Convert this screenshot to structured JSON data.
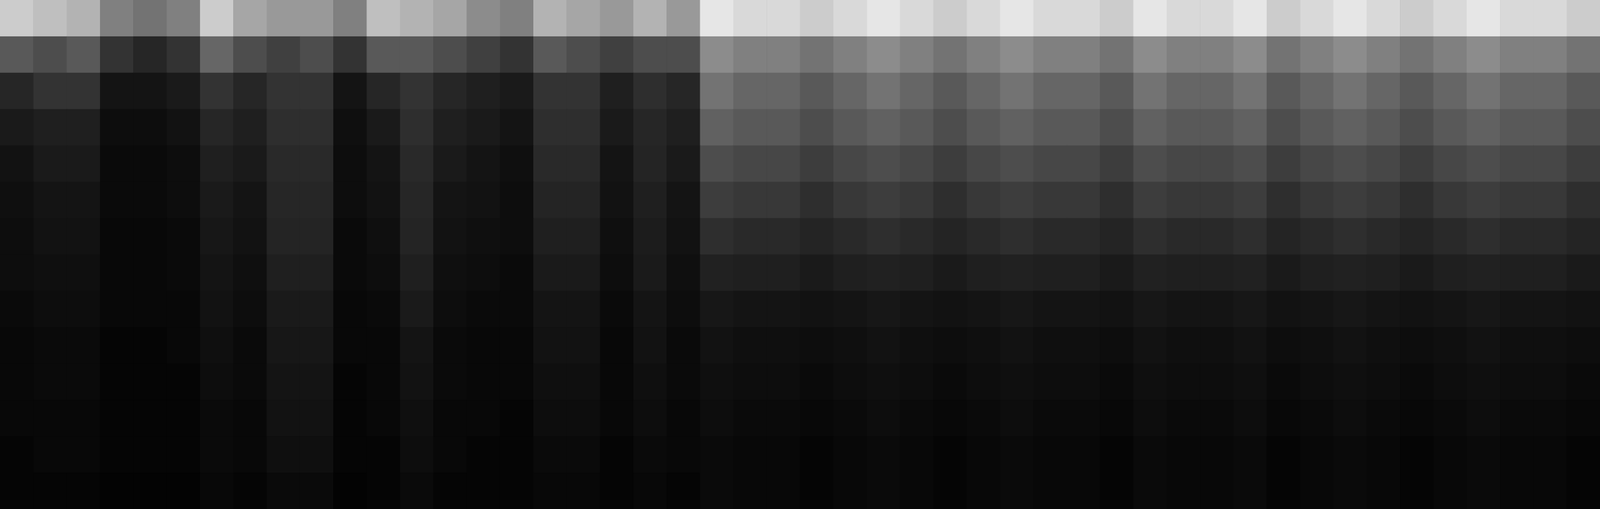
{
  "chart_data": {
    "type": "heatmap",
    "tick_labels": false,
    "color": "#ffffff",
    "zlim": [
      0,
      1
    ],
    "cells": [
      [
        0.8,
        0.75,
        0.7,
        0.5,
        0.45,
        0.5,
        0.8,
        0.65,
        0.6,
        0.6,
        0.5,
        0.75,
        0.7,
        0.65,
        0.55,
        0.5,
        0.7,
        0.65,
        0.6,
        0.7,
        0.6,
        0.9,
        0.85,
        0.85,
        0.8,
        0.85,
        0.9,
        0.85,
        0.8,
        0.85,
        0.9,
        0.85,
        0.85,
        0.8,
        0.9,
        0.85,
        0.85,
        0.9,
        0.8,
        0.85,
        0.9,
        0.85,
        0.8,
        0.85,
        0.9,
        0.85,
        0.85,
        0.8
      ],
      [
        0.35,
        0.3,
        0.35,
        0.2,
        0.15,
        0.2,
        0.4,
        0.3,
        0.25,
        0.3,
        0.2,
        0.35,
        0.35,
        0.3,
        0.25,
        0.2,
        0.35,
        0.3,
        0.25,
        0.3,
        0.3,
        0.55,
        0.5,
        0.5,
        0.45,
        0.5,
        0.55,
        0.5,
        0.45,
        0.5,
        0.55,
        0.5,
        0.5,
        0.45,
        0.55,
        0.5,
        0.5,
        0.55,
        0.45,
        0.5,
        0.55,
        0.5,
        0.45,
        0.5,
        0.55,
        0.5,
        0.5,
        0.45
      ],
      [
        0.15,
        0.2,
        0.2,
        0.08,
        0.08,
        0.1,
        0.2,
        0.15,
        0.2,
        0.2,
        0.08,
        0.15,
        0.2,
        0.15,
        0.12,
        0.1,
        0.2,
        0.2,
        0.12,
        0.18,
        0.15,
        0.45,
        0.4,
        0.4,
        0.35,
        0.4,
        0.45,
        0.4,
        0.35,
        0.4,
        0.45,
        0.4,
        0.4,
        0.35,
        0.45,
        0.4,
        0.4,
        0.45,
        0.35,
        0.4,
        0.45,
        0.4,
        0.35,
        0.4,
        0.45,
        0.4,
        0.4,
        0.35
      ],
      [
        0.1,
        0.12,
        0.12,
        0.05,
        0.05,
        0.07,
        0.15,
        0.12,
        0.18,
        0.18,
        0.06,
        0.1,
        0.18,
        0.12,
        0.1,
        0.08,
        0.18,
        0.18,
        0.1,
        0.15,
        0.12,
        0.38,
        0.35,
        0.35,
        0.3,
        0.35,
        0.38,
        0.35,
        0.3,
        0.35,
        0.38,
        0.35,
        0.35,
        0.3,
        0.38,
        0.35,
        0.35,
        0.38,
        0.3,
        0.35,
        0.38,
        0.35,
        0.3,
        0.35,
        0.38,
        0.35,
        0.35,
        0.3
      ],
      [
        0.07,
        0.1,
        0.1,
        0.04,
        0.04,
        0.05,
        0.12,
        0.1,
        0.16,
        0.16,
        0.05,
        0.08,
        0.16,
        0.1,
        0.08,
        0.06,
        0.16,
        0.16,
        0.08,
        0.14,
        0.1,
        0.3,
        0.28,
        0.28,
        0.24,
        0.28,
        0.3,
        0.28,
        0.24,
        0.28,
        0.3,
        0.28,
        0.28,
        0.24,
        0.3,
        0.28,
        0.28,
        0.3,
        0.24,
        0.28,
        0.3,
        0.28,
        0.24,
        0.28,
        0.3,
        0.28,
        0.28,
        0.24
      ],
      [
        0.06,
        0.08,
        0.08,
        0.04,
        0.04,
        0.05,
        0.1,
        0.08,
        0.15,
        0.15,
        0.05,
        0.07,
        0.15,
        0.08,
        0.07,
        0.05,
        0.14,
        0.14,
        0.07,
        0.12,
        0.08,
        0.24,
        0.22,
        0.22,
        0.18,
        0.22,
        0.24,
        0.22,
        0.18,
        0.22,
        0.24,
        0.22,
        0.22,
        0.18,
        0.24,
        0.22,
        0.22,
        0.24,
        0.18,
        0.22,
        0.24,
        0.22,
        0.18,
        0.22,
        0.24,
        0.22,
        0.22,
        0.18
      ],
      [
        0.05,
        0.07,
        0.07,
        0.03,
        0.03,
        0.04,
        0.09,
        0.07,
        0.14,
        0.14,
        0.04,
        0.06,
        0.14,
        0.07,
        0.06,
        0.05,
        0.12,
        0.12,
        0.06,
        0.11,
        0.07,
        0.18,
        0.16,
        0.16,
        0.14,
        0.16,
        0.18,
        0.16,
        0.14,
        0.16,
        0.18,
        0.16,
        0.16,
        0.14,
        0.18,
        0.16,
        0.16,
        0.18,
        0.14,
        0.16,
        0.18,
        0.16,
        0.14,
        0.16,
        0.18,
        0.16,
        0.16,
        0.14
      ],
      [
        0.05,
        0.06,
        0.06,
        0.03,
        0.03,
        0.04,
        0.08,
        0.06,
        0.12,
        0.12,
        0.04,
        0.05,
        0.12,
        0.06,
        0.05,
        0.04,
        0.1,
        0.1,
        0.05,
        0.1,
        0.06,
        0.13,
        0.12,
        0.12,
        0.1,
        0.12,
        0.13,
        0.12,
        0.1,
        0.12,
        0.13,
        0.12,
        0.12,
        0.1,
        0.13,
        0.12,
        0.12,
        0.13,
        0.1,
        0.12,
        0.13,
        0.12,
        0.1,
        0.12,
        0.13,
        0.12,
        0.12,
        0.1
      ],
      [
        0.04,
        0.05,
        0.05,
        0.03,
        0.03,
        0.03,
        0.07,
        0.05,
        0.1,
        0.1,
        0.03,
        0.04,
        0.1,
        0.05,
        0.04,
        0.04,
        0.08,
        0.08,
        0.04,
        0.08,
        0.05,
        0.09,
        0.08,
        0.08,
        0.07,
        0.08,
        0.09,
        0.08,
        0.07,
        0.08,
        0.09,
        0.08,
        0.08,
        0.07,
        0.09,
        0.08,
        0.08,
        0.09,
        0.07,
        0.08,
        0.09,
        0.08,
        0.07,
        0.08,
        0.09,
        0.08,
        0.08,
        0.07
      ],
      [
        0.03,
        0.04,
        0.04,
        0.02,
        0.02,
        0.03,
        0.06,
        0.04,
        0.09,
        0.09,
        0.03,
        0.03,
        0.08,
        0.04,
        0.03,
        0.03,
        0.07,
        0.07,
        0.03,
        0.07,
        0.04,
        0.07,
        0.06,
        0.06,
        0.05,
        0.06,
        0.07,
        0.06,
        0.05,
        0.06,
        0.07,
        0.06,
        0.06,
        0.05,
        0.07,
        0.06,
        0.06,
        0.07,
        0.05,
        0.06,
        0.07,
        0.06,
        0.05,
        0.06,
        0.07,
        0.06,
        0.06,
        0.05
      ],
      [
        0.03,
        0.04,
        0.04,
        0.02,
        0.02,
        0.02,
        0.05,
        0.04,
        0.08,
        0.08,
        0.02,
        0.03,
        0.07,
        0.04,
        0.03,
        0.03,
        0.06,
        0.06,
        0.03,
        0.06,
        0.04,
        0.06,
        0.05,
        0.05,
        0.04,
        0.05,
        0.06,
        0.05,
        0.04,
        0.05,
        0.06,
        0.05,
        0.05,
        0.04,
        0.06,
        0.05,
        0.05,
        0.06,
        0.04,
        0.05,
        0.06,
        0.05,
        0.04,
        0.05,
        0.06,
        0.05,
        0.05,
        0.04
      ],
      [
        0.03,
        0.03,
        0.03,
        0.02,
        0.02,
        0.02,
        0.04,
        0.03,
        0.07,
        0.07,
        0.02,
        0.03,
        0.06,
        0.03,
        0.03,
        0.02,
        0.05,
        0.05,
        0.03,
        0.05,
        0.03,
        0.05,
        0.04,
        0.04,
        0.03,
        0.04,
        0.05,
        0.04,
        0.03,
        0.04,
        0.05,
        0.04,
        0.04,
        0.03,
        0.05,
        0.04,
        0.04,
        0.05,
        0.03,
        0.04,
        0.05,
        0.04,
        0.03,
        0.04,
        0.05,
        0.04,
        0.04,
        0.03
      ],
      [
        0.02,
        0.03,
        0.03,
        0.02,
        0.02,
        0.02,
        0.04,
        0.03,
        0.06,
        0.06,
        0.02,
        0.02,
        0.05,
        0.03,
        0.02,
        0.02,
        0.04,
        0.04,
        0.02,
        0.04,
        0.03,
        0.04,
        0.03,
        0.03,
        0.02,
        0.03,
        0.04,
        0.03,
        0.02,
        0.03,
        0.04,
        0.03,
        0.03,
        0.02,
        0.04,
        0.03,
        0.03,
        0.04,
        0.02,
        0.03,
        0.04,
        0.03,
        0.02,
        0.03,
        0.04,
        0.03,
        0.03,
        0.02
      ],
      [
        0.02,
        0.02,
        0.02,
        0.01,
        0.01,
        0.01,
        0.03,
        0.02,
        0.04,
        0.04,
        0.01,
        0.02,
        0.04,
        0.02,
        0.02,
        0.02,
        0.03,
        0.03,
        0.02,
        0.03,
        0.02,
        0.04,
        0.03,
        0.03,
        0.02,
        0.03,
        0.04,
        0.03,
        0.02,
        0.03,
        0.04,
        0.03,
        0.03,
        0.02,
        0.04,
        0.03,
        0.03,
        0.04,
        0.02,
        0.03,
        0.04,
        0.03,
        0.02,
        0.03,
        0.04,
        0.03,
        0.03,
        0.02
      ]
    ]
  }
}
